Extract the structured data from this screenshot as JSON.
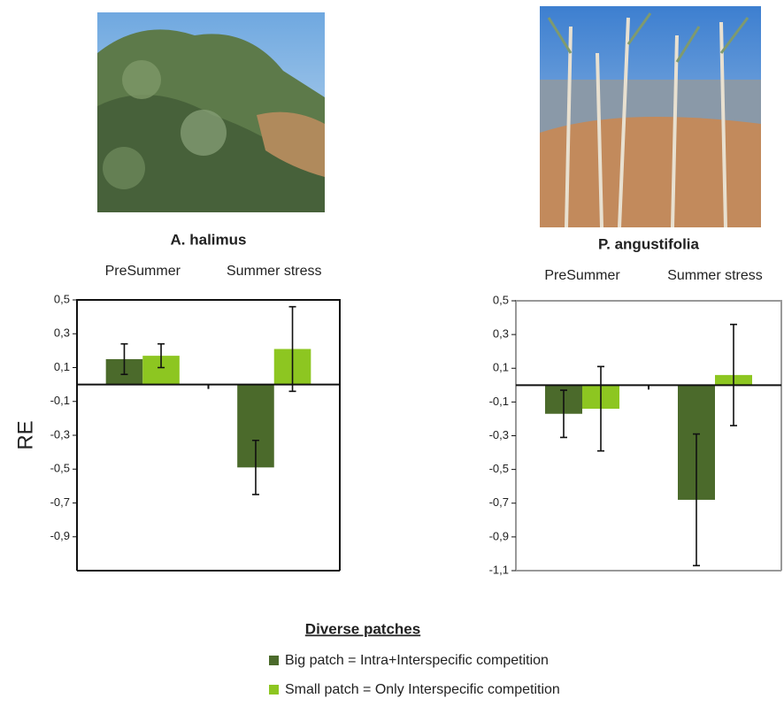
{
  "chart_data": [
    {
      "type": "bar",
      "title": "A. halimus",
      "y_label": "RE",
      "categories": [
        "PreSummer",
        "Summer stress"
      ],
      "series": [
        {
          "name": "Big patch = Intra+Interspecific competition",
          "color": "#4b6a2b",
          "values": [
            0.15,
            -0.49
          ],
          "errors": [
            0.09,
            0.16
          ]
        },
        {
          "name": "Small patch = Only Interspecific competition",
          "color": "#8dc621",
          "values": [
            0.17,
            0.21
          ],
          "errors": [
            0.07,
            0.25
          ]
        }
      ],
      "legend_title": "Diverse patches",
      "ylim": [
        -1.1,
        0.5
      ],
      "yticks": [
        {
          "value": 0.5,
          "label": "0,5"
        },
        {
          "value": 0.3,
          "label": "0,3"
        },
        {
          "value": 0.1,
          "label": "0,1"
        },
        {
          "value": -0.1,
          "label": "-0,1"
        },
        {
          "value": -0.3,
          "label": "-0,3"
        },
        {
          "value": -0.5,
          "label": "-0,5"
        },
        {
          "value": -0.7,
          "label": "-0,7"
        },
        {
          "value": -0.9,
          "label": "-0,9"
        }
      ]
    },
    {
      "type": "bar",
      "title": "P. angustifolia",
      "categories": [
        "PreSummer",
        "Summer stress"
      ],
      "series": [
        {
          "color": "#4b6a2b",
          "values": [
            -0.17,
            -0.68
          ],
          "errors": [
            0.14,
            0.39
          ]
        },
        {
          "color": "#8dc621",
          "values": [
            -0.14,
            0.06
          ],
          "errors": [
            0.25,
            0.3
          ]
        }
      ],
      "ylim": [
        -1.1,
        0.5
      ],
      "yticks": [
        {
          "value": 0.5,
          "label": "0,5"
        },
        {
          "value": 0.3,
          "label": "0,3"
        },
        {
          "value": 0.1,
          "label": "0,1"
        },
        {
          "value": -0.1,
          "label": "-0,1"
        },
        {
          "value": -0.3,
          "label": "-0,3"
        },
        {
          "value": -0.5,
          "label": "-0,5"
        },
        {
          "value": -0.7,
          "label": "-0,7"
        },
        {
          "value": -0.9,
          "label": "-0,9"
        },
        {
          "value": -1.1,
          "label": "-1,1"
        }
      ]
    }
  ]
}
